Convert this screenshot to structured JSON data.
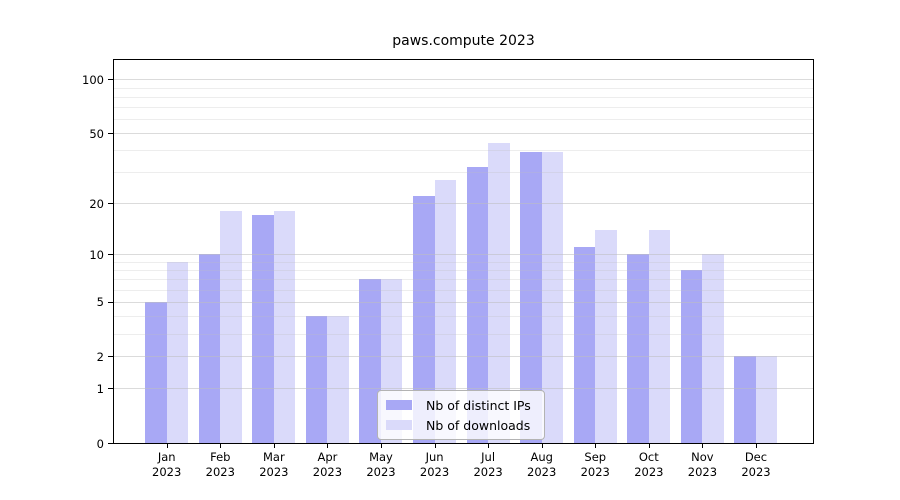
{
  "figure": {
    "title": "paws.compute 2023"
  },
  "chart_data": {
    "type": "bar",
    "title": "paws.compute 2023",
    "categories": [
      "Jan",
      "Feb",
      "Mar",
      "Apr",
      "May",
      "Jun",
      "Jul",
      "Aug",
      "Sep",
      "Oct",
      "Nov",
      "Dec"
    ],
    "x_tick_year": "2023",
    "series": [
      {
        "name": "Nb of distinct IPs",
        "color": "#a8a8f5",
        "values": [
          5,
          10,
          17,
          4,
          7,
          22,
          32,
          39,
          11,
          10,
          8,
          2
        ]
      },
      {
        "name": "Nb of downloads",
        "color": "#dadafa",
        "values": [
          9,
          18,
          18,
          4,
          7,
          27,
          44,
          39,
          14,
          14,
          10,
          2
        ]
      }
    ],
    "xlabel": "",
    "ylabel": "",
    "yscale": "log1p",
    "ylim": [
      0,
      128
    ],
    "y_major_ticks": [
      0,
      1,
      2,
      5,
      10,
      20,
      50,
      100
    ],
    "y_minor_gridlines": [
      3,
      4,
      6,
      7,
      8,
      9,
      30,
      40,
      60,
      70,
      80,
      90
    ],
    "grid": true,
    "legend_position": "lower center"
  },
  "colors": {
    "bar_distinct_ips": "#a8a8f5",
    "bar_downloads": "#dadafa",
    "grid_major": "rgba(190,190,190,0.55)",
    "grid_minor": "rgba(190,190,190,0.28)",
    "axis": "#000000",
    "legend_border": "#b3b3b3"
  }
}
